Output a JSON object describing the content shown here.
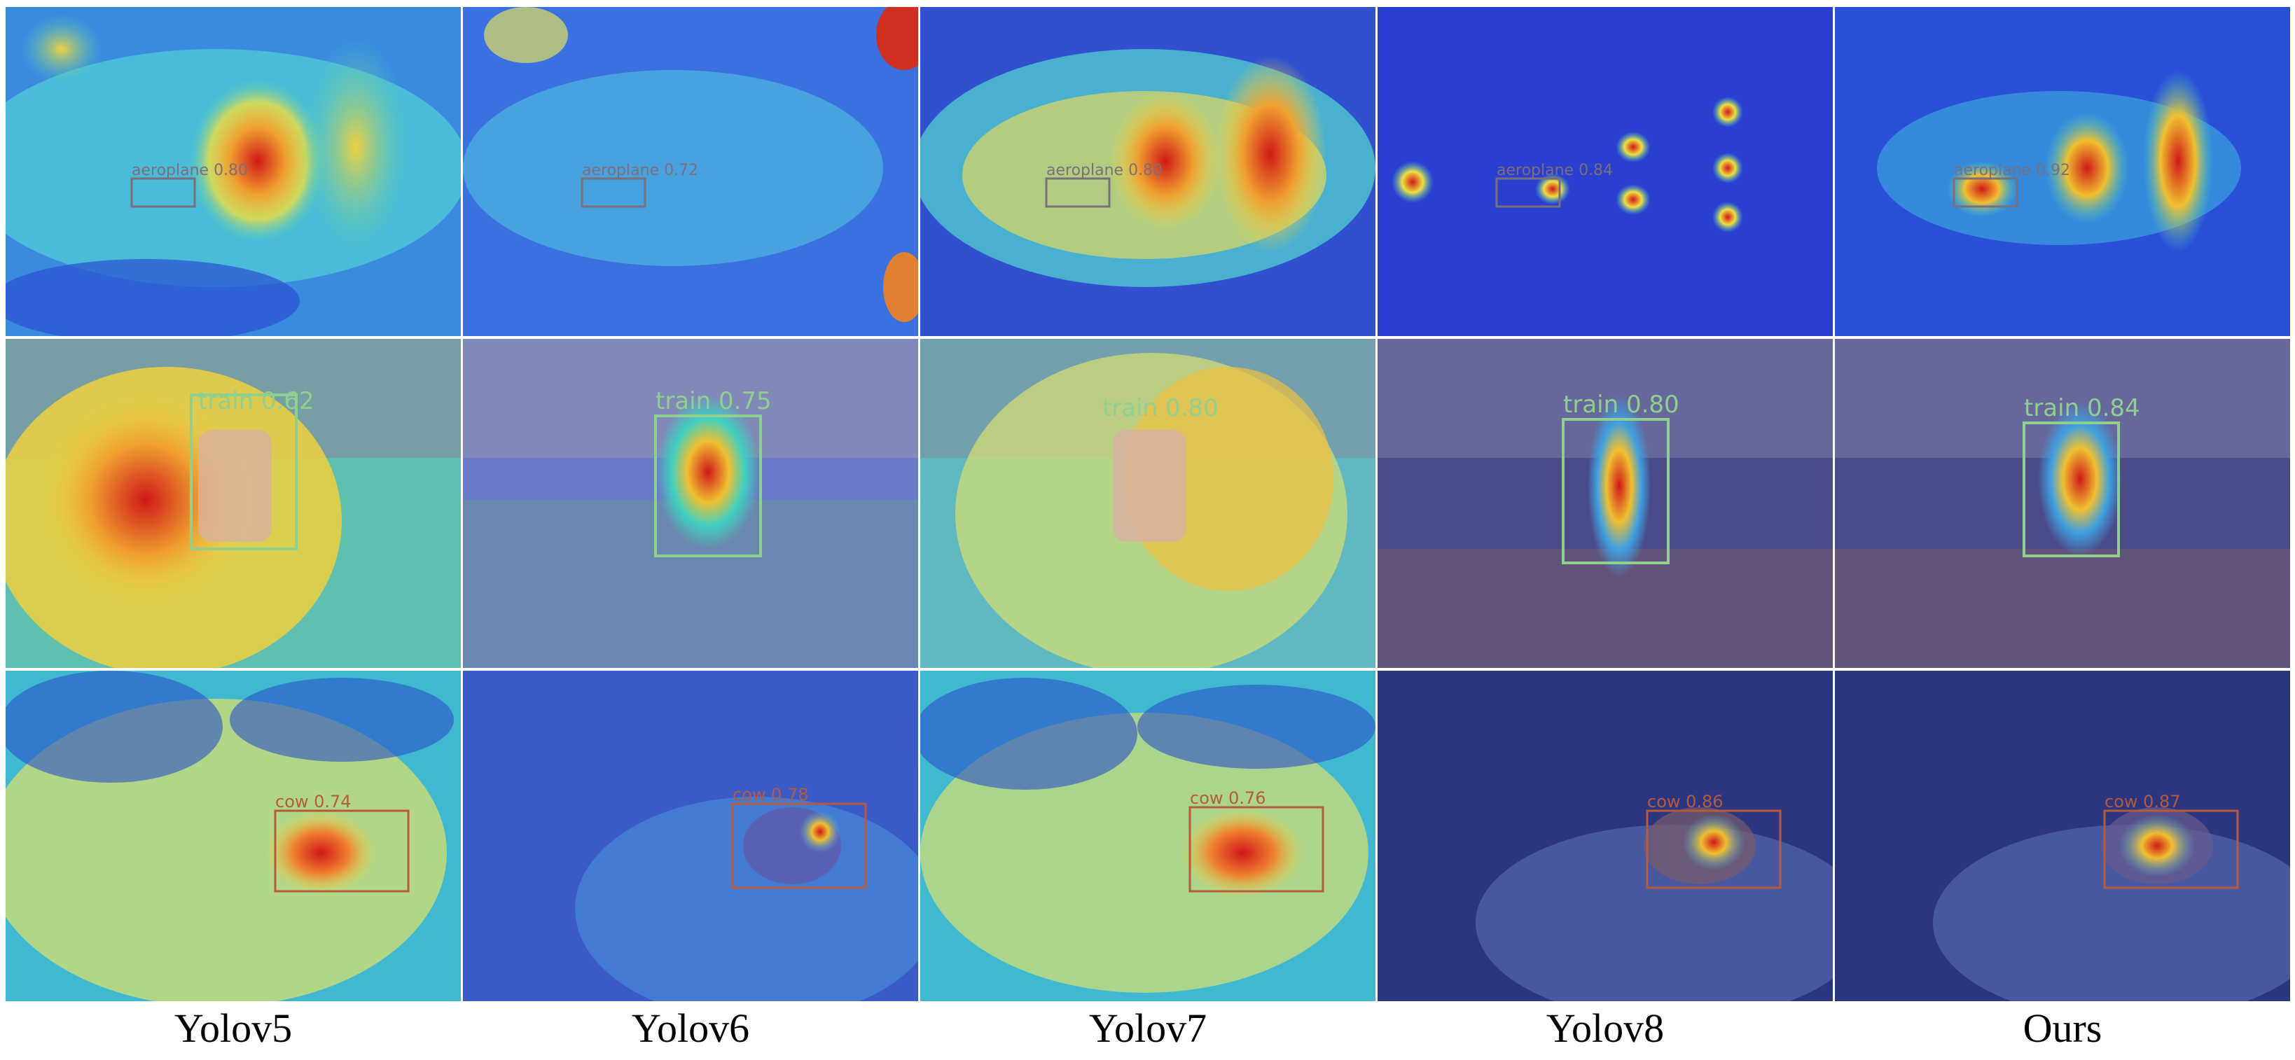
{
  "columns": [
    {
      "label": "Yolov5"
    },
    {
      "label": "Yolov6"
    },
    {
      "label": "Yolov7"
    },
    {
      "label": "Yolov8"
    },
    {
      "label": "Ours"
    }
  ],
  "rows": [
    {
      "object": "aeroplane",
      "box_color": "#7a6f7a",
      "detections": [
        "aeroplane 0.80",
        "aeroplane 0.72",
        "aeroplane 0.80",
        "aeroplane 0.84",
        "aeroplane 0.92"
      ]
    },
    {
      "object": "train",
      "box_color": "#8fd08f",
      "detections": [
        "train 0.62",
        "train 0.75",
        "train 0.80",
        "train 0.80",
        "train 0.84"
      ]
    },
    {
      "object": "cow",
      "box_color": "#b65a3c",
      "detections": [
        "cow 0.74",
        "cow 0.78",
        "cow 0.76",
        "cow 0.86",
        "cow 0.87"
      ]
    }
  ],
  "colors": {
    "heat_low": "#2a3fd0",
    "heat_mid": "#3fd0c8",
    "heat_warm": "#f0e040",
    "heat_high": "#d01818"
  }
}
